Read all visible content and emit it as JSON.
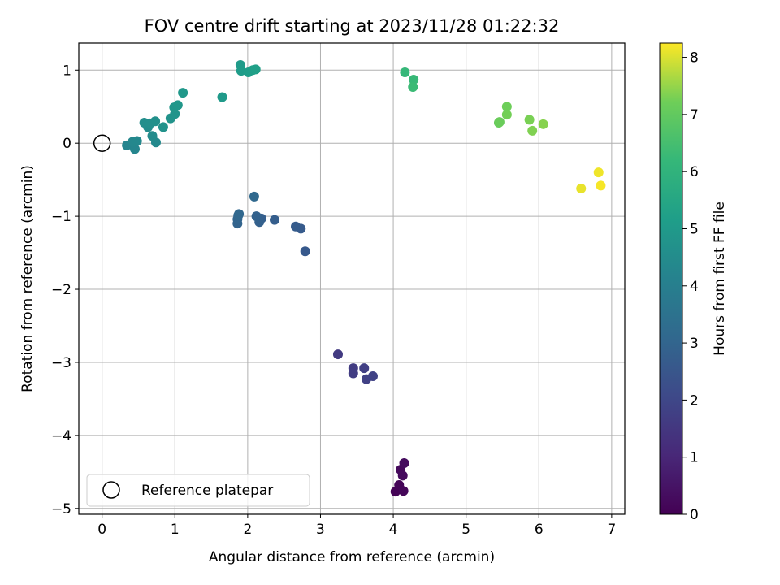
{
  "chart_data": {
    "type": "scatter",
    "title": "FOV centre drift starting at 2023/11/28 01:22:32",
    "xlabel": "Angular distance from reference (arcmin)",
    "ylabel": "Rotation from reference (arcmin)",
    "xlim": [
      -0.32,
      7.18
    ],
    "ylim": [
      -5.08,
      1.37
    ],
    "xticks": [
      0,
      1,
      2,
      3,
      4,
      5,
      6,
      7
    ],
    "yticks": [
      1,
      0,
      -1,
      -2,
      -3,
      -4,
      -5
    ],
    "grid": true,
    "colormap": "viridis",
    "colorbar": {
      "label": "Hours from first FF file",
      "range": [
        0,
        8.25
      ],
      "ticks": [
        0,
        1,
        2,
        3,
        4,
        5,
        6,
        7,
        8
      ]
    },
    "legend": {
      "position": "lower-left",
      "entries": [
        "Reference platepar"
      ]
    },
    "reference_point": {
      "x": 0,
      "y": 0
    },
    "points": [
      {
        "x": 4.03,
        "y": -4.77,
        "t": 0.05
      },
      {
        "x": 4.08,
        "y": -4.68,
        "t": 0.1
      },
      {
        "x": 4.14,
        "y": -4.76,
        "t": 0.15
      },
      {
        "x": 4.1,
        "y": -4.47,
        "t": 0.2
      },
      {
        "x": 4.13,
        "y": -4.55,
        "t": 0.25
      },
      {
        "x": 4.15,
        "y": -4.38,
        "t": 0.3
      },
      {
        "x": 3.24,
        "y": -2.89,
        "t": 1.6
      },
      {
        "x": 3.45,
        "y": -3.08,
        "t": 1.65
      },
      {
        "x": 3.45,
        "y": -3.15,
        "t": 1.7
      },
      {
        "x": 3.6,
        "y": -3.08,
        "t": 1.75
      },
      {
        "x": 3.63,
        "y": -3.23,
        "t": 1.8
      },
      {
        "x": 3.72,
        "y": -3.19,
        "t": 1.85
      },
      {
        "x": 2.79,
        "y": -1.48,
        "t": 2.6
      },
      {
        "x": 2.73,
        "y": -1.17,
        "t": 2.65
      },
      {
        "x": 2.66,
        "y": -1.14,
        "t": 2.7
      },
      {
        "x": 2.37,
        "y": -1.05,
        "t": 2.75
      },
      {
        "x": 2.19,
        "y": -1.03,
        "t": 2.8
      },
      {
        "x": 2.16,
        "y": -1.08,
        "t": 2.85
      },
      {
        "x": 2.12,
        "y": -1.0,
        "t": 2.9
      },
      {
        "x": 1.86,
        "y": -1.1,
        "t": 2.95
      },
      {
        "x": 1.86,
        "y": -1.04,
        "t": 3.0
      },
      {
        "x": 1.87,
        "y": -0.99,
        "t": 3.05
      },
      {
        "x": 1.88,
        "y": -0.97,
        "t": 3.1
      },
      {
        "x": 2.09,
        "y": -0.73,
        "t": 3.15
      },
      {
        "x": 0.34,
        "y": -0.03,
        "t": 4.2
      },
      {
        "x": 0.45,
        "y": -0.08,
        "t": 4.25
      },
      {
        "x": 0.42,
        "y": 0.02,
        "t": 4.3
      },
      {
        "x": 0.48,
        "y": 0.03,
        "t": 4.35
      },
      {
        "x": 0.74,
        "y": 0.01,
        "t": 4.4
      },
      {
        "x": 0.69,
        "y": 0.1,
        "t": 4.45
      },
      {
        "x": 0.63,
        "y": 0.22,
        "t": 4.5
      },
      {
        "x": 0.58,
        "y": 0.28,
        "t": 4.55
      },
      {
        "x": 0.66,
        "y": 0.27,
        "t": 4.6
      },
      {
        "x": 0.73,
        "y": 0.3,
        "t": 4.65
      },
      {
        "x": 0.84,
        "y": 0.22,
        "t": 4.7
      },
      {
        "x": 0.94,
        "y": 0.34,
        "t": 4.75
      },
      {
        "x": 1.0,
        "y": 0.4,
        "t": 4.8
      },
      {
        "x": 0.99,
        "y": 0.49,
        "t": 4.85
      },
      {
        "x": 1.04,
        "y": 0.52,
        "t": 4.9
      },
      {
        "x": 1.11,
        "y": 0.69,
        "t": 4.95
      },
      {
        "x": 1.65,
        "y": 0.63,
        "t": 5.0
      },
      {
        "x": 1.9,
        "y": 1.07,
        "t": 5.05
      },
      {
        "x": 1.91,
        "y": 0.99,
        "t": 5.1
      },
      {
        "x": 2.01,
        "y": 0.97,
        "t": 5.15
      },
      {
        "x": 2.07,
        "y": 1.0,
        "t": 5.2
      },
      {
        "x": 2.11,
        "y": 1.01,
        "t": 5.25
      },
      {
        "x": 4.16,
        "y": 0.97,
        "t": 6.2
      },
      {
        "x": 4.28,
        "y": 0.87,
        "t": 6.25
      },
      {
        "x": 4.27,
        "y": 0.77,
        "t": 6.3
      },
      {
        "x": 5.45,
        "y": 0.28,
        "t": 7.1
      },
      {
        "x": 5.46,
        "y": 0.29,
        "t": 7.15
      },
      {
        "x": 5.56,
        "y": 0.5,
        "t": 7.2
      },
      {
        "x": 5.56,
        "y": 0.39,
        "t": 7.25
      },
      {
        "x": 5.87,
        "y": 0.32,
        "t": 7.3
      },
      {
        "x": 5.91,
        "y": 0.17,
        "t": 7.35
      },
      {
        "x": 6.06,
        "y": 0.26,
        "t": 7.4
      },
      {
        "x": 6.58,
        "y": -0.62,
        "t": 8.1
      },
      {
        "x": 6.82,
        "y": -0.4,
        "t": 8.15
      },
      {
        "x": 6.85,
        "y": -0.58,
        "t": 8.2
      }
    ]
  }
}
